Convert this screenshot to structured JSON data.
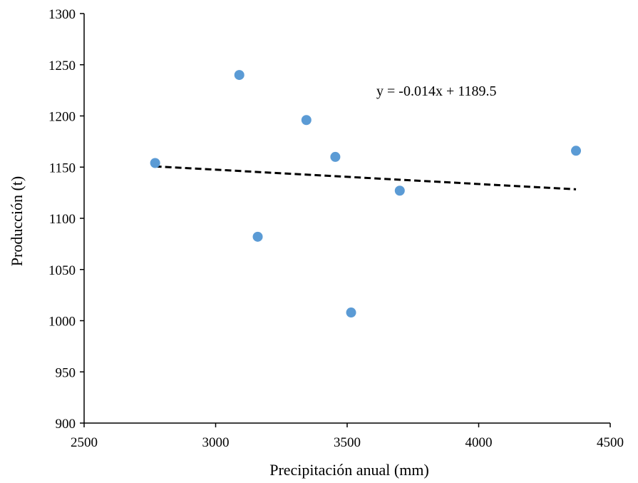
{
  "chart_data": {
    "type": "scatter",
    "xlabel": "Precipitación anual (mm)",
    "ylabel": "Producción (t)",
    "xlim": [
      2500,
      4500
    ],
    "ylim": [
      900,
      1300
    ],
    "xticks": [
      2500,
      3000,
      3500,
      4000,
      4500
    ],
    "yticks": [
      900,
      950,
      1000,
      1050,
      1100,
      1150,
      1200,
      1250,
      1300
    ],
    "grid": false,
    "series": [
      {
        "points": [
          {
            "x": 2770,
            "y": 1154
          },
          {
            "x": 3090,
            "y": 1240
          },
          {
            "x": 3160,
            "y": 1082
          },
          {
            "x": 3345,
            "y": 1196
          },
          {
            "x": 3455,
            "y": 1160
          },
          {
            "x": 3515,
            "y": 1008
          },
          {
            "x": 3700,
            "y": 1127
          },
          {
            "x": 4370,
            "y": 1166
          }
        ],
        "color": "#5B9BD5"
      }
    ],
    "trendline": {
      "slope": -0.014,
      "intercept": 1189.5,
      "x_range": [
        2770,
        4370
      ],
      "style": "dashed",
      "color": "#000000",
      "equation_label": "y = -0.014x + 1189.5"
    }
  }
}
